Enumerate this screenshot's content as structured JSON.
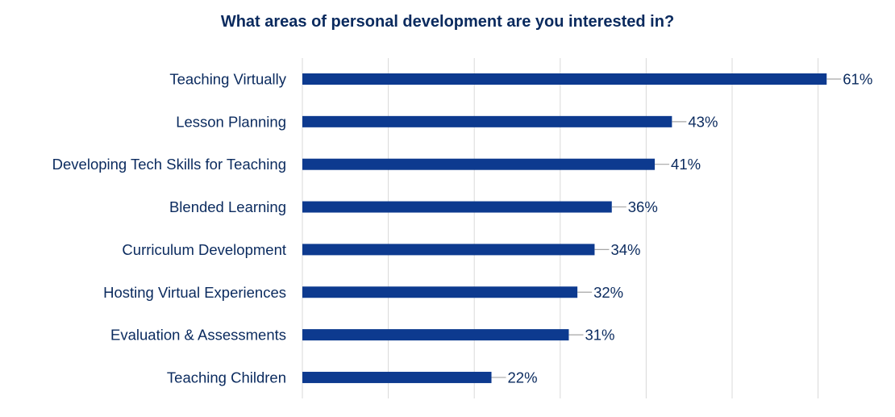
{
  "chart_data": {
    "type": "bar",
    "orientation": "horizontal",
    "title": "What areas of personal development are you interested in?",
    "categories": [
      "Teaching Virtually",
      "Lesson Planning",
      "Developing Tech Skills for Teaching",
      "Blended Learning",
      "Curriculum Development",
      "Hosting Virtual Experiences",
      "Evaluation & Assessments",
      "Teaching Children"
    ],
    "values": [
      61,
      43,
      41,
      36,
      34,
      32,
      31,
      22
    ],
    "value_labels": [
      "61%",
      "43%",
      "41%",
      "36%",
      "34%",
      "32%",
      "31%",
      "22%"
    ],
    "xlim": [
      0,
      70
    ],
    "grid": true,
    "legend": "none",
    "colors": {
      "bar": "#0d3a8f",
      "title": "#0a2a5e",
      "label": "#0a2a5e",
      "grid": "#d9d9d9",
      "leader": "#a6a6a6"
    }
  }
}
